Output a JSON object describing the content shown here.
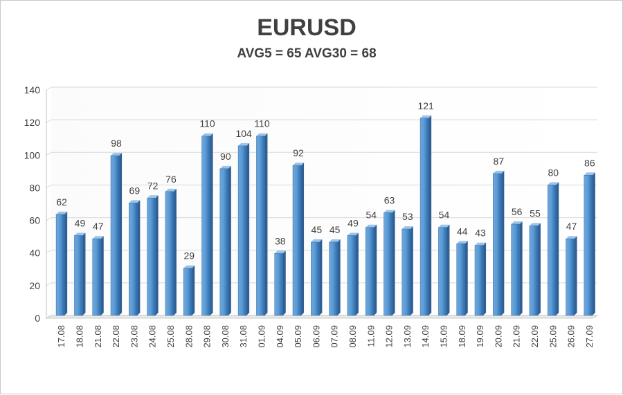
{
  "chart_data": {
    "type": "bar",
    "title": "EURUSD",
    "subtitle": "AVG5 = 65 AVG30 = 68",
    "xlabel": "",
    "ylabel": "",
    "ylim": [
      0,
      140
    ],
    "yticks": [
      0,
      20,
      40,
      60,
      80,
      100,
      120,
      140
    ],
    "grid": true,
    "legend": "none",
    "bar_color": "#5b9bd5",
    "categories": [
      "17.08",
      "18.08",
      "21.08",
      "22.08",
      "23.08",
      "24.08",
      "25.08",
      "28.08",
      "29.08",
      "30.08",
      "31.08",
      "01.09",
      "04.09",
      "05.09",
      "06.09",
      "07.09",
      "08.09",
      "11.09",
      "12.09",
      "13.09",
      "14.09",
      "15.09",
      "18.09",
      "19.09",
      "20.09",
      "21.09",
      "22.09",
      "25.09",
      "26.09",
      "27.09"
    ],
    "values": [
      62,
      49,
      47,
      98,
      69,
      72,
      76,
      29,
      110,
      90,
      104,
      110,
      38,
      92,
      45,
      45,
      49,
      54,
      63,
      53,
      121,
      54,
      44,
      43,
      87,
      56,
      55,
      80,
      47,
      86
    ]
  }
}
